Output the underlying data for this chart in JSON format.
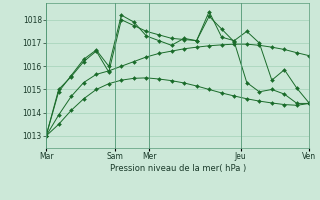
{
  "bg_color": "#cce8d8",
  "grid_color": "#99ccb0",
  "line_color": "#1a6b2a",
  "marker_color": "#1a6b2a",
  "xlabel": "Pression niveau de la mer( hPa )",
  "ylim": [
    1012.5,
    1018.7
  ],
  "yticks": [
    1013,
    1014,
    1015,
    1016,
    1017,
    1018
  ],
  "xtick_labels": [
    "Mar",
    "",
    "Sam",
    "Mer",
    "",
    "Jeu",
    "",
    "Ven"
  ],
  "xtick_positions": [
    0,
    3,
    6,
    9,
    13,
    17,
    20,
    23
  ],
  "vlines": [
    0,
    6,
    9,
    17,
    23
  ],
  "series": [
    [
      1013.0,
      1014.9,
      1015.6,
      1016.3,
      1016.7,
      1016.0,
      1018.2,
      1017.9,
      1017.3,
      1017.1,
      1016.9,
      1017.2,
      1017.1,
      1018.35,
      1017.25,
      1017.1,
      1017.5,
      1017.0,
      1015.4,
      1015.85,
      1015.05,
      1014.4
    ],
    [
      1013.0,
      1015.0,
      1015.55,
      1016.2,
      1016.65,
      1015.75,
      1018.0,
      1017.75,
      1017.5,
      1017.35,
      1017.2,
      1017.15,
      1017.1,
      1018.15,
      1017.6,
      1017.05,
      1015.3,
      1014.9,
      1015.0,
      1014.8,
      1014.4,
      1014.4
    ],
    [
      1013.0,
      1013.9,
      1014.7,
      1015.3,
      1015.65,
      1015.8,
      1016.0,
      1016.2,
      1016.4,
      1016.55,
      1016.65,
      1016.75,
      1016.82,
      1016.88,
      1016.92,
      1016.95,
      1016.95,
      1016.9,
      1016.82,
      1016.72,
      1016.58,
      1016.45
    ],
    [
      1013.0,
      1013.5,
      1014.1,
      1014.6,
      1015.0,
      1015.25,
      1015.4,
      1015.48,
      1015.5,
      1015.45,
      1015.38,
      1015.28,
      1015.15,
      1015.0,
      1014.85,
      1014.72,
      1014.6,
      1014.5,
      1014.42,
      1014.35,
      1014.32,
      1014.4
    ]
  ],
  "figsize": [
    3.2,
    2.0
  ],
  "dpi": 100
}
